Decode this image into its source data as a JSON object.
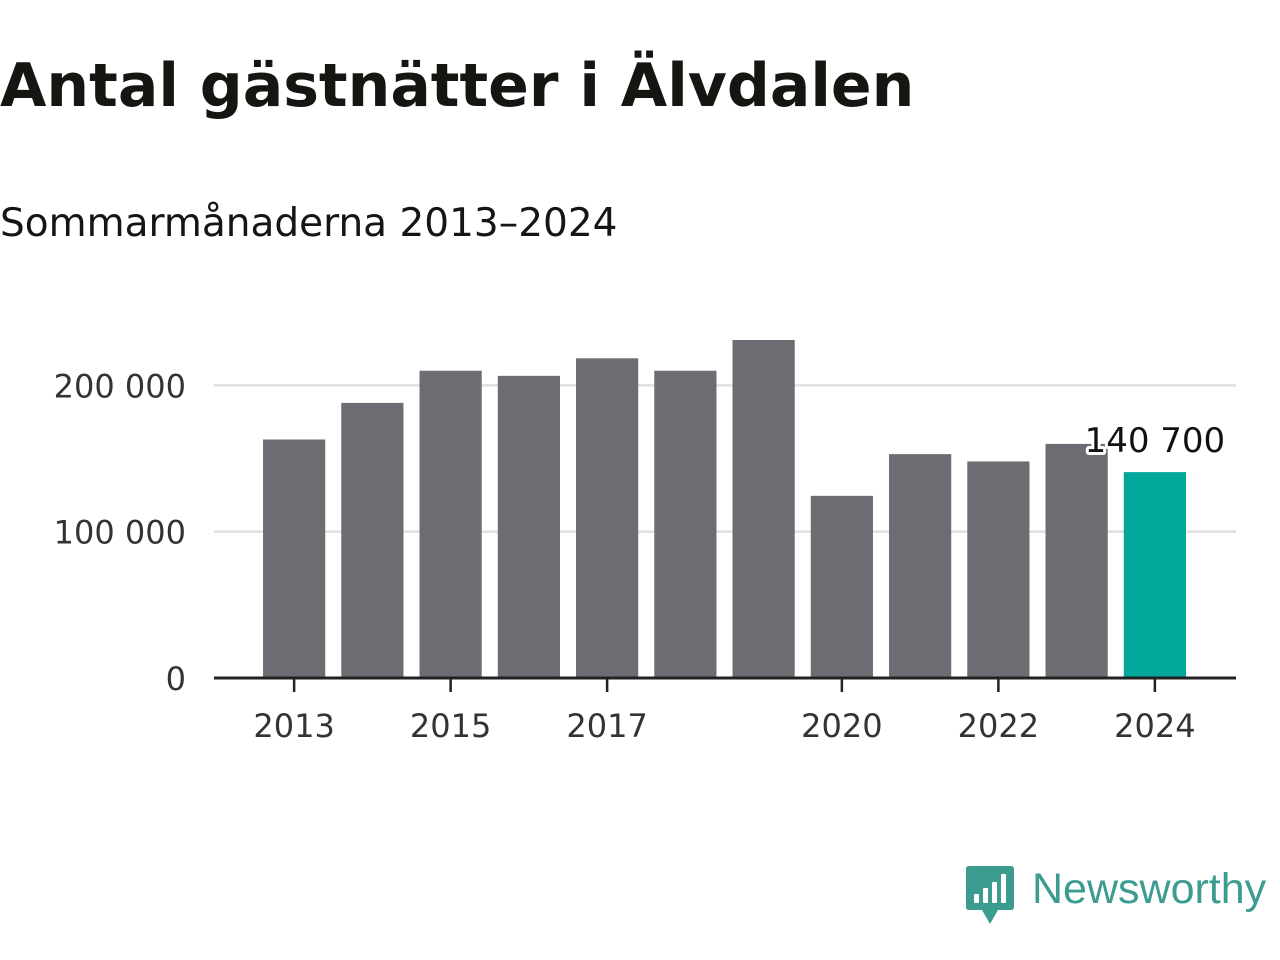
{
  "title": "Antal gästnätter i Älvdalen",
  "subtitle": "Sommarmånaderna 2013–2024",
  "chart_data": {
    "type": "bar",
    "categories": [
      "2013",
      "2014",
      "2015",
      "2016",
      "2017",
      "2018",
      "2019",
      "2020",
      "2021",
      "2022",
      "2023",
      "2024"
    ],
    "values": [
      163000,
      188000,
      210000,
      206500,
      218500,
      210000,
      231000,
      124500,
      153000,
      148000,
      160000,
      140700
    ],
    "x_tick_labels": [
      "2013",
      "2015",
      "2017",
      "2020",
      "2022",
      "2024"
    ],
    "y_ticks": [
      0,
      100000,
      200000
    ],
    "y_tick_labels": [
      "0",
      "100 000",
      "200 000"
    ],
    "ylim": [
      0,
      231000
    ],
    "grid": "horizontal",
    "annotation": {
      "category": "2024",
      "text": "140 700"
    },
    "colors": {
      "bar": "#6d6c73",
      "highlight": "#01a79a",
      "grid": "#e0e0e0",
      "axis": "#222222"
    }
  },
  "brand": {
    "name": "Newsworthy",
    "logo_icon": "newsworthy-logo-icon",
    "color": "#3c9c90"
  }
}
